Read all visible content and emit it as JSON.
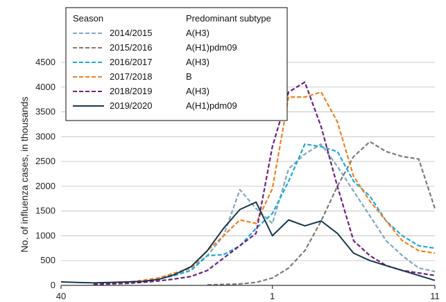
{
  "chart_data": {
    "type": "line",
    "title": "",
    "xlabel": "",
    "ylabel": "No. of influenza cases, in thousands",
    "x_tick_labels": [
      "40",
      "1",
      "11"
    ],
    "y_ticks": [
      0,
      500,
      1000,
      1500,
      2000,
      2500,
      3000,
      3500,
      4000,
      4500
    ],
    "ylim": [
      0,
      4500
    ],
    "week_order": [
      40,
      41,
      42,
      43,
      44,
      45,
      46,
      47,
      48,
      49,
      50,
      51,
      52,
      1,
      2,
      3,
      4,
      5,
      6,
      7,
      8,
      9,
      10,
      11
    ],
    "legend": {
      "position": "top-left",
      "header_season": "Season",
      "header_subtype": "Predominant subtype"
    },
    "series": [
      {
        "name": "2014/2015",
        "subtype": "A(H3)",
        "color": "#7fa7bc",
        "dash": "dashed",
        "values": [
          null,
          null,
          30,
          40,
          60,
          90,
          150,
          220,
          350,
          600,
          1000,
          1930,
          1550,
          1250,
          2350,
          2650,
          2850,
          2400,
          1900,
          1400,
          900,
          600,
          350,
          280
        ]
      },
      {
        "name": "2015/2016",
        "subtype": "A(H1)pdm09",
        "color": "#7a7a72",
        "dash": "dashed",
        "values": [
          null,
          null,
          null,
          null,
          null,
          null,
          null,
          null,
          null,
          10,
          20,
          30,
          60,
          150,
          350,
          700,
          1300,
          2000,
          2600,
          2900,
          2700,
          2600,
          2550,
          1550
        ]
      },
      {
        "name": "2016/2017",
        "subtype": "A(H3)",
        "color": "#1aa7dc",
        "dash": "dashed",
        "values": [
          null,
          null,
          20,
          30,
          50,
          80,
          130,
          200,
          300,
          600,
          620,
          800,
          1150,
          1450,
          2100,
          2850,
          2800,
          2700,
          2100,
          1800,
          1300,
          1000,
          800,
          750
        ]
      },
      {
        "name": "2017/2018",
        "subtype": "B",
        "color": "#f07f20",
        "dash": "dashed",
        "values": [
          null,
          null,
          30,
          40,
          60,
          100,
          150,
          250,
          350,
          700,
          1000,
          1320,
          1250,
          1950,
          3800,
          3800,
          3900,
          3300,
          2200,
          1700,
          1300,
          900,
          700,
          650
        ]
      },
      {
        "name": "2018/2019",
        "subtype": "A(H3)",
        "color": "#6b1f7f",
        "dash": "dashed",
        "values": [
          null,
          null,
          20,
          30,
          40,
          60,
          90,
          130,
          180,
          300,
          550,
          800,
          1050,
          2800,
          3900,
          4100,
          3200,
          2000,
          900,
          600,
          400,
          300,
          250,
          200
        ]
      },
      {
        "name": "2019/2020",
        "subtype": "A(H1)pdm09",
        "color": "#17364a",
        "dash": "solid",
        "values": [
          70,
          60,
          50,
          60,
          70,
          80,
          120,
          220,
          380,
          700,
          1150,
          1530,
          1680,
          1000,
          1320,
          1200,
          1300,
          1050,
          650,
          500,
          400,
          300,
          200,
          100
        ]
      }
    ]
  }
}
